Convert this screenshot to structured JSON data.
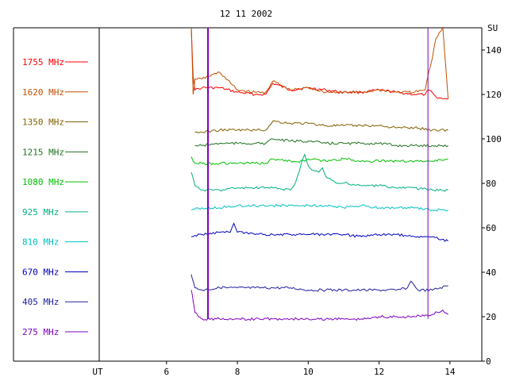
{
  "title": "12 11 2002",
  "chart_data": {
    "type": "line",
    "title": "12 11 2002",
    "y_unit_label": "SU",
    "x_axis_label": "UT",
    "x_ticks": [
      "6",
      "8",
      "10",
      "12",
      "14"
    ],
    "x_tick_values": [
      6,
      8,
      10,
      12,
      14
    ],
    "y_ticks": [
      "0",
      "20",
      "40",
      "60",
      "80",
      "100",
      "120",
      "140"
    ],
    "y_tick_values": [
      0,
      20,
      40,
      60,
      80,
      100,
      120,
      140
    ],
    "xlim": [
      4.1,
      14.9
    ],
    "ylim": [
      0,
      150
    ],
    "grid": false,
    "legend_position": "left",
    "markers": [
      7.17,
      13.38
    ],
    "marker_color": "#8000c0",
    "series": [
      {
        "name": "1755 MHz",
        "color": "#ff0000",
        "x": [
          6.7,
          6.75,
          6.8,
          7.0,
          7.5,
          8.0,
          8.5,
          8.8,
          9.0,
          9.5,
          10.0,
          10.5,
          11.0,
          11.5,
          12.0,
          12.5,
          13.0,
          13.3,
          13.4,
          13.6,
          13.8,
          13.95
        ],
        "values": [
          150,
          128,
          122,
          123,
          123,
          121,
          120,
          120,
          125,
          122,
          123,
          122,
          121,
          121,
          122,
          121,
          120,
          120,
          122,
          119,
          118,
          118
        ]
      },
      {
        "name": "1620 MHz",
        "color": "#c05000",
        "x": [
          6.7,
          6.75,
          6.8,
          7.0,
          7.5,
          8.0,
          8.5,
          8.8,
          9.0,
          9.5,
          10.0,
          10.5,
          11.0,
          11.5,
          12.0,
          12.5,
          13.0,
          13.3,
          13.4,
          13.5,
          13.6,
          13.8,
          13.95
        ],
        "values": [
          150,
          120,
          127,
          127,
          130,
          122,
          121,
          121,
          126,
          122,
          123,
          121,
          121,
          121,
          122,
          121,
          121,
          122,
          130,
          136,
          145,
          150,
          118
        ]
      },
      {
        "name": "1350 MHz",
        "color": "#806000",
        "x": [
          6.8,
          7.0,
          7.5,
          8.0,
          8.5,
          8.8,
          9.0,
          9.5,
          10.0,
          10.5,
          11.0,
          11.5,
          12.0,
          12.5,
          13.0,
          13.5,
          13.95
        ],
        "values": [
          103,
          103,
          104,
          104,
          104,
          104,
          108,
          107,
          107,
          106,
          106,
          106,
          106,
          105,
          105,
          104,
          104
        ]
      },
      {
        "name": "1215 MHz",
        "color": "#207020",
        "x": [
          6.8,
          7.0,
          7.5,
          8.0,
          8.5,
          8.8,
          9.0,
          9.5,
          10.0,
          10.5,
          11.0,
          11.5,
          12.0,
          12.5,
          13.0,
          13.5,
          13.95
        ],
        "values": [
          97,
          97,
          98,
          98,
          98,
          98,
          100,
          99,
          99,
          98,
          98,
          98,
          98,
          97,
          97,
          97,
          97
        ]
      },
      {
        "name": "1080 MHz",
        "color": "#00c000",
        "x": [
          6.7,
          6.8,
          7.0,
          7.5,
          8.0,
          8.5,
          8.8,
          9.0,
          9.5,
          9.9,
          10.0,
          10.5,
          11.0,
          11.5,
          12.0,
          12.5,
          13.0,
          13.5,
          13.95
        ],
        "values": [
          92,
          89,
          89,
          89,
          89,
          89,
          89,
          91,
          90,
          90,
          91,
          90,
          91,
          90,
          90,
          90,
          90,
          90,
          91
        ]
      },
      {
        "name": "925 MHz",
        "color": "#00b080",
        "x": [
          6.7,
          6.8,
          7.0,
          7.5,
          8.0,
          8.5,
          9.0,
          9.5,
          9.6,
          9.9,
          10.0,
          10.1,
          10.3,
          10.4,
          10.5,
          10.8,
          11.0,
          11.5,
          12.0,
          12.5,
          13.0,
          13.5,
          13.95
        ],
        "values": [
          85,
          79,
          77,
          77,
          78,
          78,
          78,
          77,
          79,
          93,
          88,
          86,
          85,
          87,
          83,
          80,
          80,
          79,
          79,
          78,
          78,
          77,
          77
        ]
      },
      {
        "name": "810 MHz",
        "color": "#00c0c0",
        "x": [
          6.7,
          7.0,
          7.5,
          8.0,
          8.5,
          9.0,
          9.5,
          10.0,
          10.5,
          11.0,
          11.5,
          12.0,
          12.5,
          13.0,
          13.5,
          13.95
        ],
        "values": [
          68,
          69,
          69,
          70,
          70,
          70,
          70,
          70,
          70,
          69,
          70,
          69,
          69,
          69,
          68,
          68
        ]
      },
      {
        "name": "670 MHz",
        "color": "#0000c0",
        "x": [
          6.7,
          7.0,
          7.5,
          7.8,
          7.9,
          8.0,
          8.5,
          9.0,
          9.5,
          10.0,
          10.5,
          11.0,
          11.5,
          12.0,
          12.5,
          13.0,
          13.5,
          13.95
        ],
        "values": [
          56,
          57,
          58,
          58,
          62,
          58,
          57,
          57,
          57,
          57,
          57,
          57,
          56,
          57,
          57,
          56,
          56,
          54
        ]
      },
      {
        "name": "405 MHz",
        "color": "#2020a0",
        "x": [
          6.7,
          6.75,
          6.8,
          7.0,
          7.5,
          8.0,
          8.5,
          9.0,
          9.5,
          10.0,
          10.5,
          11.0,
          11.5,
          12.0,
          12.5,
          12.8,
          12.9,
          13.0,
          13.1,
          13.5,
          13.95
        ],
        "values": [
          39,
          36,
          33,
          32,
          33,
          33,
          33,
          33,
          33,
          32,
          32,
          32,
          32,
          32,
          32,
          33,
          36,
          34,
          32,
          32,
          34
        ]
      },
      {
        "name": "275 MHz",
        "color": "#8000c0",
        "x": [
          6.7,
          6.75,
          6.8,
          6.9,
          7.0,
          7.5,
          8.0,
          8.5,
          9.0,
          9.5,
          10.0,
          10.5,
          11.0,
          11.5,
          12.0,
          12.5,
          13.0,
          13.5,
          13.8,
          13.95
        ],
        "values": [
          32,
          27,
          22,
          20,
          19,
          19,
          19,
          19,
          19,
          19,
          19,
          19,
          19,
          19,
          20,
          20,
          20,
          21,
          23,
          21
        ]
      }
    ]
  }
}
